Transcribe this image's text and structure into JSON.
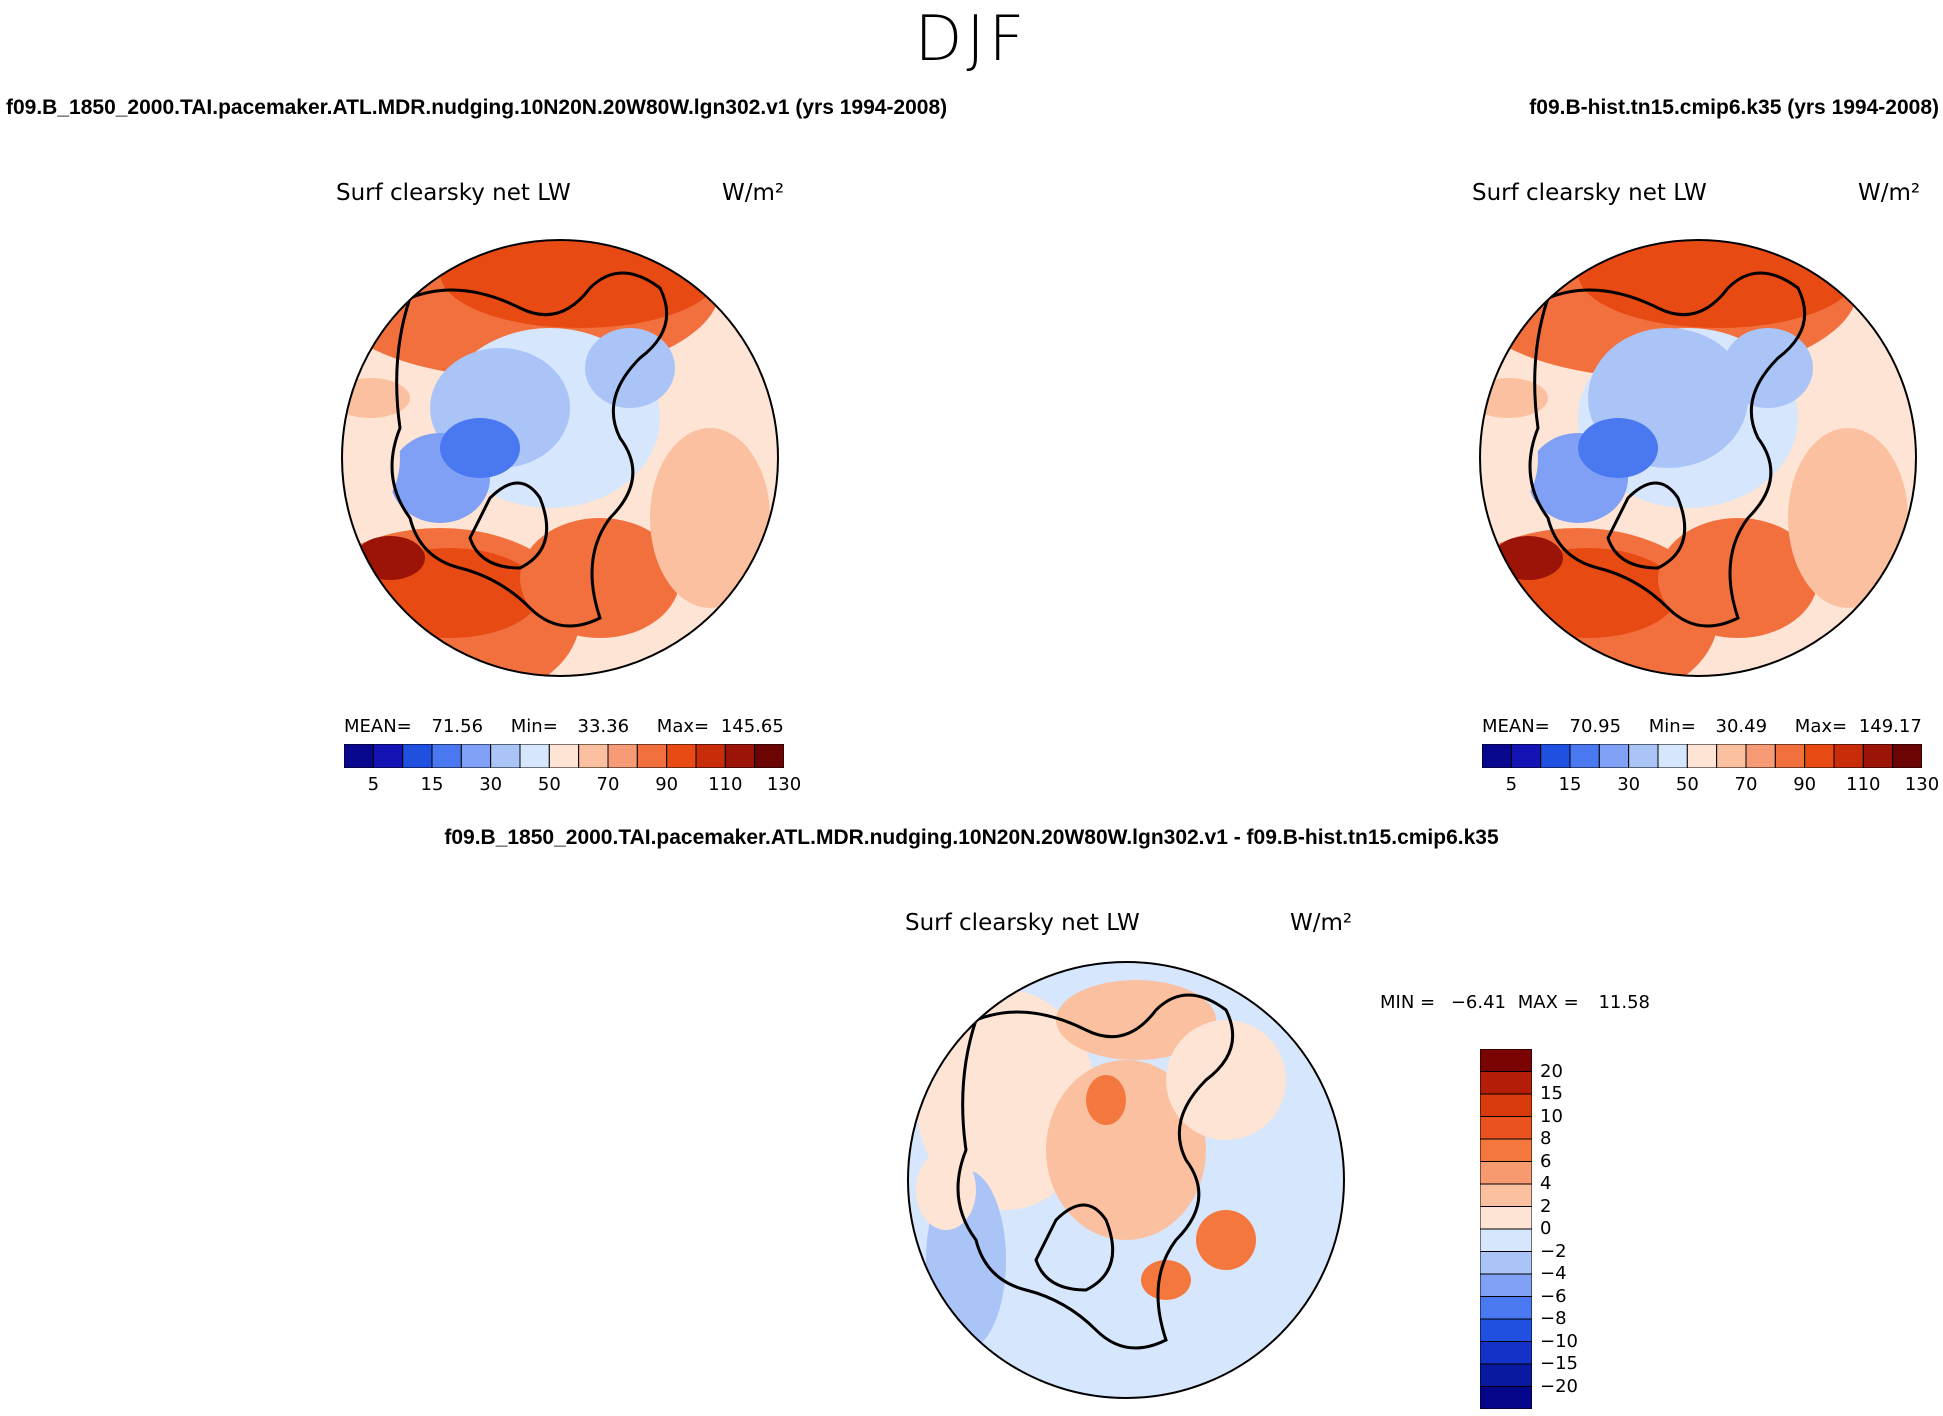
{
  "season": "DJF",
  "left_case": "f09.B_1850_2000.TAI.pacemaker.ATL.MDR.nudging.10N20N.20W80W.lgn302.v1 (yrs 1994-2008)",
  "right_case": "f09.B-hist.tn15.cmip6.k35 (yrs 1994-2008)",
  "diff_case": "f09.B_1850_2000.TAI.pacemaker.ATL.MDR.nudging.10N20N.20W80W.lgn302.v1 - f09.B-hist.tn15.cmip6.k35",
  "variable": "Surf clearsky net LW",
  "units": "W/m²",
  "left_stats": {
    "mean_label": "MEAN=",
    "mean": "71.56",
    "min_label": "Min=",
    "min": "33.36",
    "max_label": "Max=",
    "max": "145.65"
  },
  "right_stats": {
    "mean_label": "MEAN=",
    "mean": "70.95",
    "min_label": "Min=",
    "min": "30.49",
    "max_label": "Max=",
    "max": "149.17"
  },
  "diff_stats": {
    "min_label": "MIN =",
    "min": "−6.41",
    "max_label": "MAX =",
    "max": "11.58"
  },
  "abs_colorbar": {
    "tick_labels": [
      "5",
      "15",
      "30",
      "50",
      "70",
      "90",
      "110",
      "130"
    ],
    "colors": [
      "#08088e",
      "#1414b4",
      "#2050e0",
      "#4a78f0",
      "#7fa0f4",
      "#aac4f8",
      "#d6e6fc",
      "#fde4d4",
      "#fbc0a0",
      "#f79a76",
      "#f2703e",
      "#e84a14",
      "#c82c08",
      "#9c1408",
      "#6c0404"
    ]
  },
  "diff_colorbar": {
    "tick_labels": [
      "20",
      "15",
      "10",
      "8",
      "6",
      "4",
      "2",
      "0",
      "−2",
      "−4",
      "−6",
      "−8",
      "−10",
      "−15",
      "−20"
    ],
    "colors": [
      "#7a0404",
      "#b41e08",
      "#d83a0c",
      "#ea5220",
      "#f4783e",
      "#f89a70",
      "#fbc0a0",
      "#fde4d4",
      "#d6e6fc",
      "#aac4f8",
      "#7fa0f4",
      "#4a78f0",
      "#2050e0",
      "#1432c8",
      "#0a1aa0",
      "#06068a"
    ]
  }
}
